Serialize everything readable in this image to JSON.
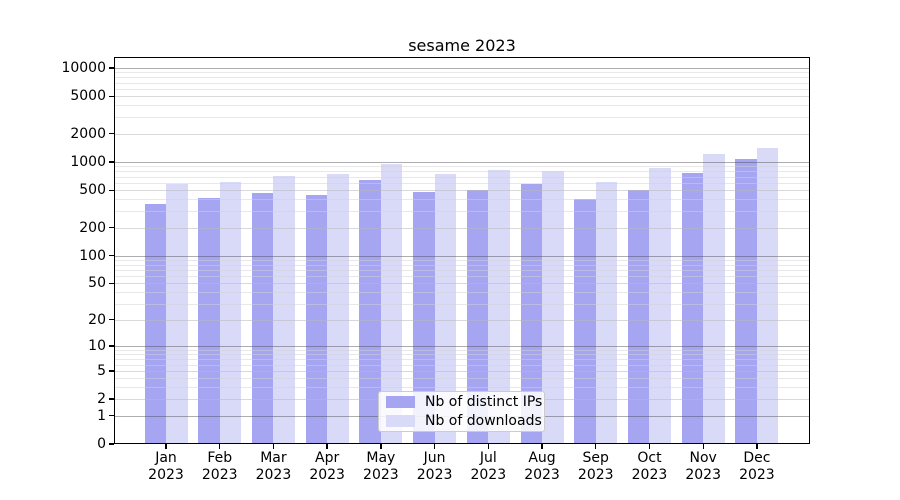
{
  "chart_data": {
    "type": "bar",
    "title": "sesame 2023",
    "categories": [
      "Jan",
      "Feb",
      "Mar",
      "Apr",
      "May",
      "Jun",
      "Jul",
      "Aug",
      "Sep",
      "Oct",
      "Nov",
      "Dec"
    ],
    "year_label": "2023",
    "series": [
      {
        "name": "Nb of distinct IPs",
        "color": "#a5a5f2",
        "values": [
          357,
          417,
          467,
          445,
          635,
          482,
          506,
          583,
          403,
          506,
          764,
          1080
        ]
      },
      {
        "name": "Nb of downloads",
        "color": "#d9d9f8",
        "values": [
          580,
          607,
          703,
          745,
          945,
          750,
          822,
          808,
          617,
          864,
          1230,
          1410
        ]
      }
    ],
    "yscale": "log1p",
    "ylim": [
      0,
      13100
    ],
    "yticks": [
      0,
      1,
      2,
      5,
      10,
      20,
      50,
      100,
      200,
      500,
      1000,
      2000,
      5000,
      10000
    ],
    "grid": true,
    "gridline_major_values": [
      1,
      10,
      100,
      1000,
      10000
    ],
    "legend_position": "lower center",
    "colors": {
      "grid_major": "#ababaf",
      "grid_labeled": "#dededf",
      "grid_minor": "#ededee",
      "axis": "#000000"
    }
  }
}
